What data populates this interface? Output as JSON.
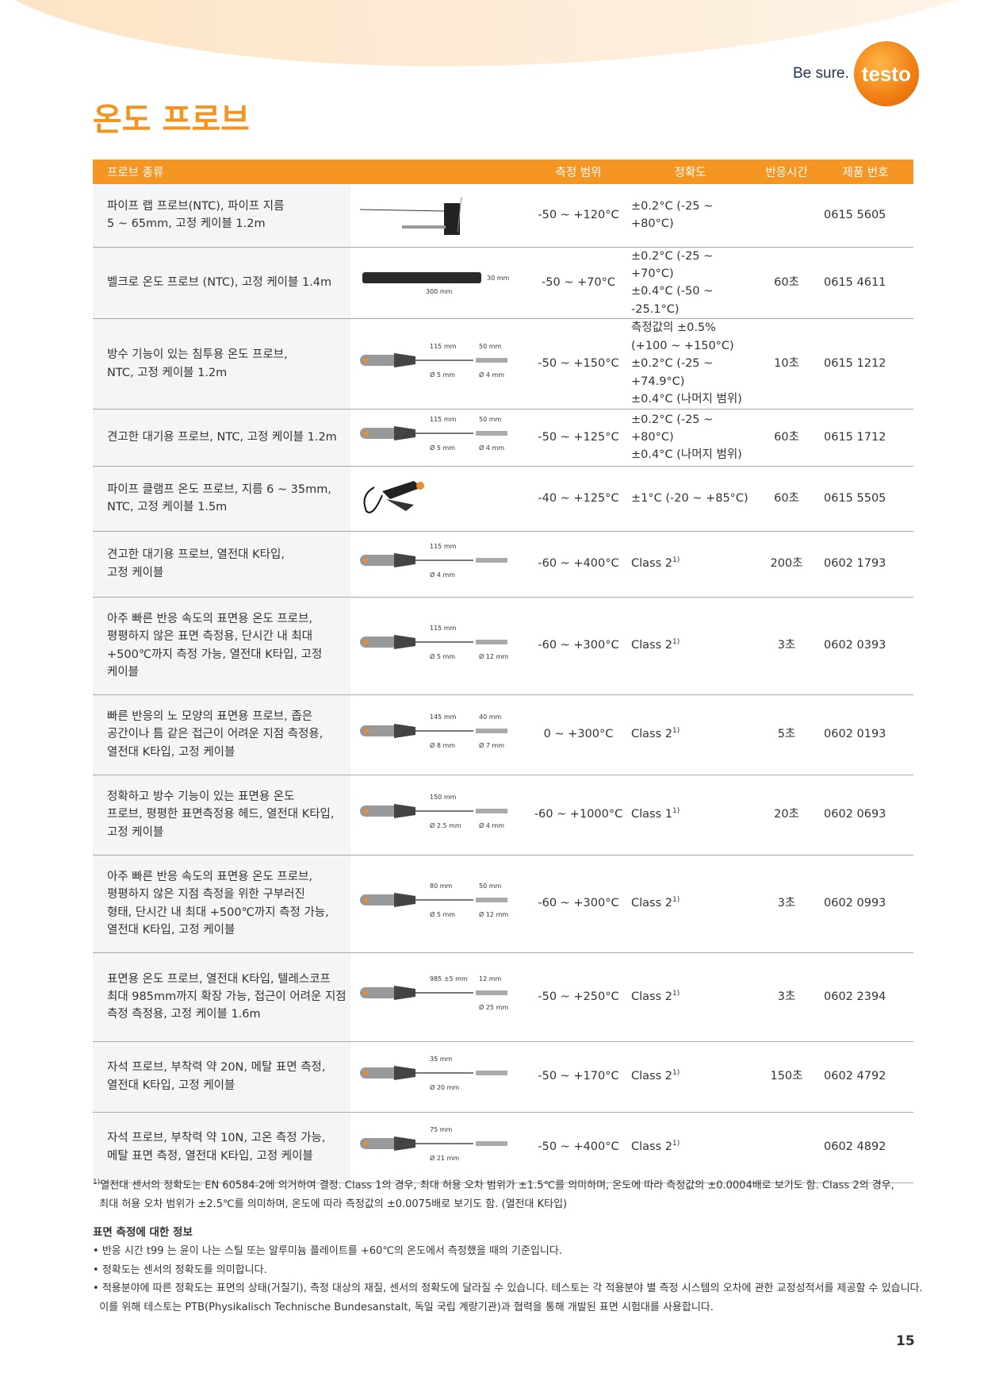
{
  "brand": {
    "tagline": "Be sure.",
    "logo": "testo"
  },
  "title": "온도 프로브",
  "colors": {
    "accent": "#f59623",
    "title": "#f39321",
    "desc_bg": "#f4f5f7"
  },
  "headers": [
    "프로브 종류",
    "측정 범위",
    "정확도",
    "반응시간",
    "제품 번호"
  ],
  "rows": [
    {
      "desc": [
        "파이프 랩 프로브(NTC), 파이프 지름",
        "5 ~ 65mm, 고정 케이블 1.2m"
      ],
      "dims": [],
      "range": "-50 ~ +120°C",
      "acc": [
        "±0.2°C (-25 ~ +80°C)"
      ],
      "resp": "",
      "pn": "0615 5605",
      "h": 79
    },
    {
      "desc": [
        "벨크로 온도 프로브 (NTC), 고정 케이블 1.4m"
      ],
      "dims": [
        "300 mm",
        "30 mm"
      ],
      "range": "-50 ~ +70°C",
      "acc": [
        "±0.2°C (-25 ~ +70°C)",
        "±0.4°C (-50 ~ -25.1°C)"
      ],
      "resp": "60초",
      "pn": "0615 4611",
      "h": 71
    },
    {
      "desc": [
        "방수 기능이 있는 침투용 온도 프로브,",
        "NTC, 고정 케이블 1.2m"
      ],
      "dims": [
        "115 mm",
        "50 mm",
        "Ø 5 mm",
        "Ø 4 mm"
      ],
      "range": "-50 ~ +150°C",
      "acc": [
        "측정값의 ±0.5%",
        "(+100 ~ +150°C)",
        "±0.2°C (-25 ~ +74.9°C)",
        "±0.4°C (나머지 범위)"
      ],
      "resp": "10초",
      "pn": "0615 1212",
      "h": 105
    },
    {
      "desc": [
        "견고한 대기용 프로브, NTC, 고정 케이블 1.2m"
      ],
      "dims": [
        "115 mm",
        "50 mm",
        "Ø 5 mm",
        "Ø 4 mm"
      ],
      "range": "-50 ~ +125°C",
      "acc": [
        "±0.2°C (-25 ~ +80°C)",
        "±0.4°C (나머지 범위)"
      ],
      "resp": "60초",
      "pn": "0615 1712",
      "h": 72
    },
    {
      "desc": [
        "파이프 클램프 온도 프로브, 지름 6 ~ 35mm,",
        "NTC, 고정 케이블 1.5m"
      ],
      "dims": [],
      "range": "-40 ~ +125°C",
      "acc": [
        "±1°C (-20 ~ +85°C)"
      ],
      "resp": "60초",
      "pn": "0615 5505",
      "h": 82
    },
    {
      "desc": [
        "견고한 대기용 프로브, 열전대 K타입,",
        "고정 케이블"
      ],
      "dims": [
        "115 mm",
        "",
        "Ø 4 mm",
        ""
      ],
      "range": "-60 ~ +400°C",
      "acc": [
        "Class 2"
      ],
      "sup": "1)",
      "resp": "200초",
      "pn": "0602 1793",
      "h": 83
    },
    {
      "desc": [
        "아주 빠른 반응 속도의 표면용 온도 프로브,",
        "평평하지 않은 표면 측정용, 단시간 내 최대",
        "+500℃까지 측정 가능, 열전대 K타입, 고정",
        "케이블"
      ],
      "dims": [
        "115 mm",
        "",
        "Ø 5 mm",
        "Ø 12 mm"
      ],
      "range": "-60 ~ +300°C",
      "acc": [
        "Class 2"
      ],
      "sup": "1)",
      "resp": "3초",
      "pn": "0602 0393",
      "h": 123
    },
    {
      "desc": [
        "빠른 반응의 노 모양의 표면용 프로브, 좁은",
        "공간이나 틈 같은 접근이 어려운 지점 측정용,",
        "열전대 K타입, 고정 케이블"
      ],
      "dims": [
        "145 mm",
        "40 mm",
        "Ø 8 mm",
        "Ø 7 mm"
      ],
      "range": "0 ~ +300°C",
      "acc": [
        "Class 2"
      ],
      "sup": "1)",
      "resp": "5초",
      "pn": "0602 0193",
      "h": 101
    },
    {
      "desc": [
        "정확하고 방수 기능이 있는 표면용 온도",
        "프로브, 평평한 표면측정용 헤드, 열전대 K타입,",
        "고정 케이블"
      ],
      "dims": [
        "150 mm",
        "",
        "Ø 2.5 mm",
        "Ø 4 mm"
      ],
      "range": "-60 ~ +1000°C",
      "acc": [
        "Class 1"
      ],
      "sup": "1)",
      "resp": "20초",
      "pn": "0602 0693",
      "h": 101
    },
    {
      "desc": [
        "아주 빠른 반응 속도의 표면용 온도 프로브,",
        "평평하지 않은 지점 측정을 위한 구부러진",
        "형태, 단시간 내 최대 +500℃까지 측정 가능,",
        "열전대 K타입, 고정 케이블"
      ],
      "dims": [
        "80 mm",
        "50 mm",
        "Ø 5 mm",
        "Ø 12 mm"
      ],
      "range": "-60 ~ +300°C",
      "acc": [
        "Class 2"
      ],
      "sup": "1)",
      "resp": "3초",
      "pn": "0602 0993",
      "h": 123
    },
    {
      "desc": [
        "표면용 온도 프로브, 열전대 K타입, 텔레스코프",
        "최대 985mm까지 확장 가능, 접근이 어려운 지점",
        "측정 측정용, 고정 케이블 1.6m"
      ],
      "dims": [
        "985 ±5 mm",
        "12 mm",
        "",
        "Ø 25 mm"
      ],
      "range": "-50 ~ +250°C",
      "acc": [
        "Class 2"
      ],
      "sup": "1)",
      "resp": "3초",
      "pn": "0602 2394",
      "h": 112
    },
    {
      "desc": [
        "자석 프로브, 부착력 약 20N, 메탈 표면 측정,",
        "열전대 K타입, 고정 케이블"
      ],
      "dims": [
        "35 mm",
        "",
        "Ø 20 mm",
        ""
      ],
      "range": "-50 ~ +170°C",
      "acc": [
        "Class 2"
      ],
      "sup": "1)",
      "resp": "150초",
      "pn": "0602 4792",
      "h": 89
    },
    {
      "desc": [
        "자석 프로브, 부착력 약 10N, 고온 측정 가능,",
        "메탈 표면 측정, 열전대 K타입, 고정 케이블"
      ],
      "dims": [
        "75 mm",
        "",
        "Ø 21 mm",
        ""
      ],
      "range": "-50 ~ +400°C",
      "acc": [
        "Class 2"
      ],
      "sup": "1)",
      "resp": "",
      "pn": "0602 4892",
      "h": 89
    }
  ],
  "footnote": {
    "mark": "1)",
    "lines": [
      "열전대 센서의 정확도는 EN 60584-2에 의거하여 결정. Class 1의 경우, 최대 허용 오차 범위가 ±1.5℃를 의미하며, 온도에 따라 측정값의 ±0.0004배로 보기도 함. Class 2의 경우,",
      "최대 허용 오차 범위가 ±2.5℃를 의미하며, 온도에 따라 측정값의 ±0.0075배로 보기도 함. (열전대 K타입)"
    ]
  },
  "info": {
    "title": "표면 측정에 대한 정보",
    "bullets": [
      "반응 시간 t99 는 윤이 나는 스틸 또는 알루미늄 플레이트를 +60℃의 온도에서 측정했을 때의 기준입니다.",
      "정확도는 센서의 정확도를 의미합니다.",
      "적용분야에 따른 정확도는 표면의 상태(거칠기), 측정 대상의 재질, 센서의 정확도에 달라질 수 있습니다. 테스토는 각 적용분야 별 측정 시스템의 오차에 관한 교정성적서를 제공할 수 있습니다."
    ],
    "cont": "이를 위해 테스토는 PTB(Physikalisch Technische Bundesanstalt, 독일 국립 계량기관)과 협력을 통해 개발된 표면 시험대를 사용합니다."
  },
  "page": "15"
}
